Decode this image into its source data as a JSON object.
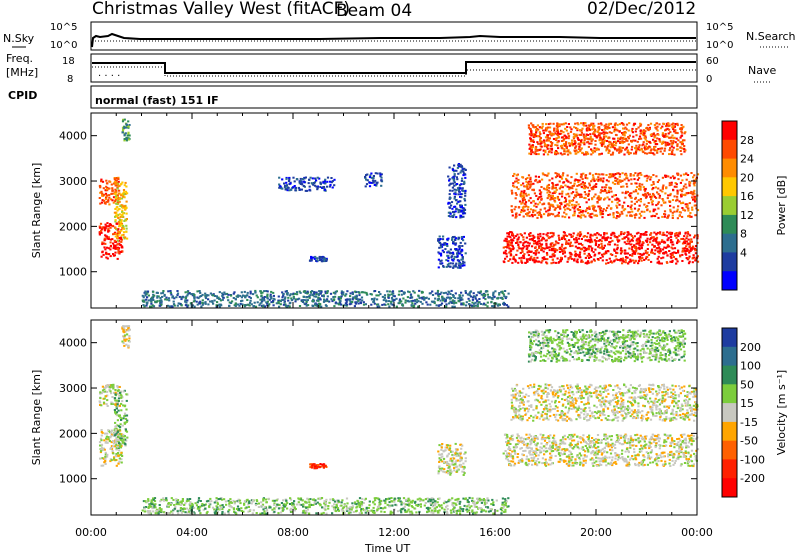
{
  "header": {
    "station": "Christmas Valley West (fitACF)",
    "beam": "Beam 04",
    "date": "02/Dec/2012"
  },
  "noise_panel": {
    "left_label": "N.Sky",
    "left_ticks": [
      "10^5",
      "10^0"
    ],
    "right_label": "N.Search",
    "right_ticks": [
      "10^5",
      "10^0"
    ]
  },
  "freq_panel": {
    "left_label_1": "Freq.",
    "left_label_2": "[MHz]",
    "left_ticks": [
      "18",
      "8"
    ],
    "right_label": "Nave",
    "right_ticks": [
      "60",
      "0"
    ]
  },
  "cpid": {
    "label": "CPID",
    "mode": "normal (fast) 151 IF"
  },
  "chart_data": [
    {
      "type": "heatmap",
      "name": "Power",
      "ylabel": "Slant Range [km]",
      "xlabel": "Time UT",
      "xlim": [
        0,
        24
      ],
      "ylim": [
        200,
        4500
      ],
      "yticks": [
        "1000",
        "2000",
        "3000",
        "4000"
      ],
      "colorbar": {
        "label": "Power [dB]",
        "ticks": [
          "28",
          "24",
          "20",
          "16",
          "12",
          "8",
          "4"
        ],
        "colors": [
          "#ff0000",
          "#ff4a00",
          "#ff8c00",
          "#ffc800",
          "#9acd32",
          "#2e8b57",
          "#2d6e8f",
          "#1e3ca0",
          "#0000ff"
        ]
      },
      "regions": [
        {
          "t": [
            0.3,
            1.2
          ],
          "r": [
            1300,
            2100
          ],
          "level": 0
        },
        {
          "t": [
            0.3,
            1.1
          ],
          "r": [
            2500,
            3100
          ],
          "level": 1
        },
        {
          "t": [
            0.9,
            1.4
          ],
          "r": [
            1700,
            3000
          ],
          "level": 3
        },
        {
          "t": [
            1.2,
            1.5
          ],
          "r": [
            3900,
            4400
          ],
          "level": 5
        },
        {
          "t": [
            7.4,
            9.6
          ],
          "r": [
            2800,
            3100
          ],
          "level": 7
        },
        {
          "t": [
            8.6,
            9.3
          ],
          "r": [
            1250,
            1350
          ],
          "level": 7
        },
        {
          "t": [
            10.8,
            11.5
          ],
          "r": [
            2900,
            3200
          ],
          "level": 7
        },
        {
          "t": [
            13.7,
            14.8
          ],
          "r": [
            1100,
            1800
          ],
          "level": 7
        },
        {
          "t": [
            14.1,
            14.8
          ],
          "r": [
            2200,
            3400
          ],
          "level": 7
        },
        {
          "t": [
            16.3,
            24
          ],
          "r": [
            1200,
            1900
          ],
          "level": 0
        },
        {
          "t": [
            16.6,
            24
          ],
          "r": [
            2200,
            3200
          ],
          "level": 1
        },
        {
          "t": [
            17.3,
            23.5
          ],
          "r": [
            3600,
            4300
          ],
          "level": 1
        },
        {
          "t": [
            2,
            16.5
          ],
          "r": [
            250,
            600
          ],
          "level": 6
        }
      ]
    },
    {
      "type": "heatmap",
      "name": "Velocity",
      "ylabel": "Slant Range [km]",
      "xlabel": "Time UT",
      "xlim": [
        0,
        24
      ],
      "ylim": [
        200,
        4500
      ],
      "yticks": [
        "1000",
        "2000",
        "3000",
        "4000"
      ],
      "colorbar": {
        "label": "Velocity [m s⁻¹]",
        "ticks": [
          "200",
          "100",
          "50",
          "15",
          "-15",
          "-50",
          "-100",
          "-200"
        ],
        "colors": [
          "#1e3ca0",
          "#2d6e8f",
          "#2e8b57",
          "#7ccd3c",
          "#c8c8c0",
          "#ffa500",
          "#ff6000",
          "#ff2000",
          "#ff0000"
        ]
      },
      "regions": [
        {
          "t": [
            0.3,
            1.2
          ],
          "r": [
            1300,
            2100
          ],
          "level": 4
        },
        {
          "t": [
            0.3,
            1.1
          ],
          "r": [
            2600,
            3100
          ],
          "level": 4
        },
        {
          "t": [
            0.9,
            1.4
          ],
          "r": [
            1700,
            3000
          ],
          "level": 3
        },
        {
          "t": [
            1.2,
            1.5
          ],
          "r": [
            3900,
            4400
          ],
          "level": 4
        },
        {
          "t": [
            8.6,
            9.3
          ],
          "r": [
            1250,
            1350
          ],
          "level": 7
        },
        {
          "t": [
            13.7,
            14.8
          ],
          "r": [
            1100,
            1800
          ],
          "level": 4
        },
        {
          "t": [
            16.3,
            24
          ],
          "r": [
            1300,
            2000
          ],
          "level": 4
        },
        {
          "t": [
            16.6,
            24
          ],
          "r": [
            2300,
            3100
          ],
          "level": 4
        },
        {
          "t": [
            17.3,
            23.5
          ],
          "r": [
            3600,
            4300
          ],
          "level": 3
        },
        {
          "t": [
            2,
            16.5
          ],
          "r": [
            250,
            600
          ],
          "level": 3
        }
      ]
    }
  ],
  "time_axis": {
    "ticks": [
      "00:00",
      "04:00",
      "08:00",
      "12:00",
      "16:00",
      "20:00",
      "00:00"
    ],
    "label": "Time UT"
  }
}
